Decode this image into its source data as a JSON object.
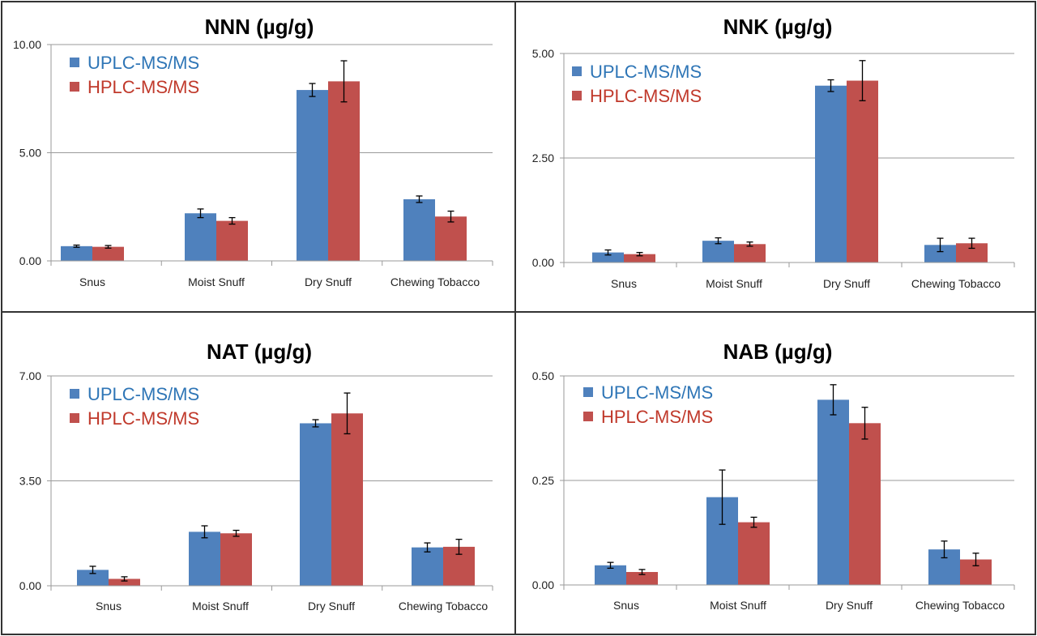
{
  "colors": {
    "uplc": "#4F81BD",
    "hplc": "#C0504D",
    "legend_uplc_text": "#2E75B6",
    "legend_hplc_text": "#C0392B"
  },
  "chart_data": [
    {
      "type": "bar",
      "title": "NNN (µg/g)",
      "categories": [
        "Snus",
        "Moist Snuff",
        "Dry Snuff",
        "Chewing Tobacco"
      ],
      "ylim": [
        0,
        10
      ],
      "yticks": [
        "0.00",
        "5.00",
        "10.00"
      ],
      "ytick_values": [
        0,
        5,
        10
      ],
      "series": [
        {
          "name": "UPLC-MS/MS",
          "values": [
            0.68,
            2.2,
            7.9,
            2.85
          ],
          "errors": [
            0.05,
            0.2,
            0.3,
            0.15
          ]
        },
        {
          "name": "HPLC-MS/MS",
          "values": [
            0.65,
            1.85,
            8.3,
            2.05
          ],
          "errors": [
            0.06,
            0.15,
            0.95,
            0.25
          ]
        }
      ]
    },
    {
      "type": "bar",
      "title": "NNK (µg/g)",
      "categories": [
        "Snus",
        "Moist Snuff",
        "Dry Snuff",
        "Chewing Tobacco"
      ],
      "ylim": [
        0,
        5
      ],
      "yticks": [
        "0.00",
        "2.50",
        "5.00"
      ],
      "ytick_values": [
        0,
        2.5,
        5
      ],
      "series": [
        {
          "name": "UPLC-MS/MS",
          "values": [
            0.24,
            0.52,
            4.23,
            0.42
          ],
          "errors": [
            0.06,
            0.07,
            0.14,
            0.16
          ]
        },
        {
          "name": "HPLC-MS/MS",
          "values": [
            0.2,
            0.44,
            4.35,
            0.46
          ],
          "errors": [
            0.04,
            0.05,
            0.48,
            0.12
          ]
        }
      ]
    },
    {
      "type": "bar",
      "title": "NAT (µg/g)",
      "categories": [
        "Snus",
        "Moist Snuff",
        "Dry Snuff",
        "Chewing Tobacco"
      ],
      "ylim": [
        0,
        7
      ],
      "yticks": [
        "0.00",
        "3.50",
        "7.00"
      ],
      "ytick_values": [
        0,
        3.5,
        7
      ],
      "series": [
        {
          "name": "UPLC-MS/MS",
          "values": [
            0.53,
            1.8,
            5.42,
            1.28
          ],
          "errors": [
            0.12,
            0.2,
            0.12,
            0.15
          ]
        },
        {
          "name": "HPLC-MS/MS",
          "values": [
            0.23,
            1.75,
            5.75,
            1.3
          ],
          "errors": [
            0.07,
            0.1,
            0.68,
            0.25
          ]
        }
      ]
    },
    {
      "type": "bar",
      "title": "NAB (µg/g)",
      "categories": [
        "Snus",
        "Moist Snuff",
        "Dry Snuff",
        "Chewing Tobacco"
      ],
      "ylim": [
        0,
        0.5
      ],
      "yticks": [
        "0.00",
        "0.25",
        "0.50"
      ],
      "ytick_values": [
        0,
        0.25,
        0.5
      ],
      "series": [
        {
          "name": "UPLC-MS/MS",
          "values": [
            0.047,
            0.21,
            0.443,
            0.085
          ],
          "errors": [
            0.007,
            0.065,
            0.036,
            0.02
          ]
        },
        {
          "name": "HPLC-MS/MS",
          "values": [
            0.031,
            0.15,
            0.387,
            0.061
          ],
          "errors": [
            0.006,
            0.012,
            0.038,
            0.015
          ]
        }
      ]
    }
  ]
}
